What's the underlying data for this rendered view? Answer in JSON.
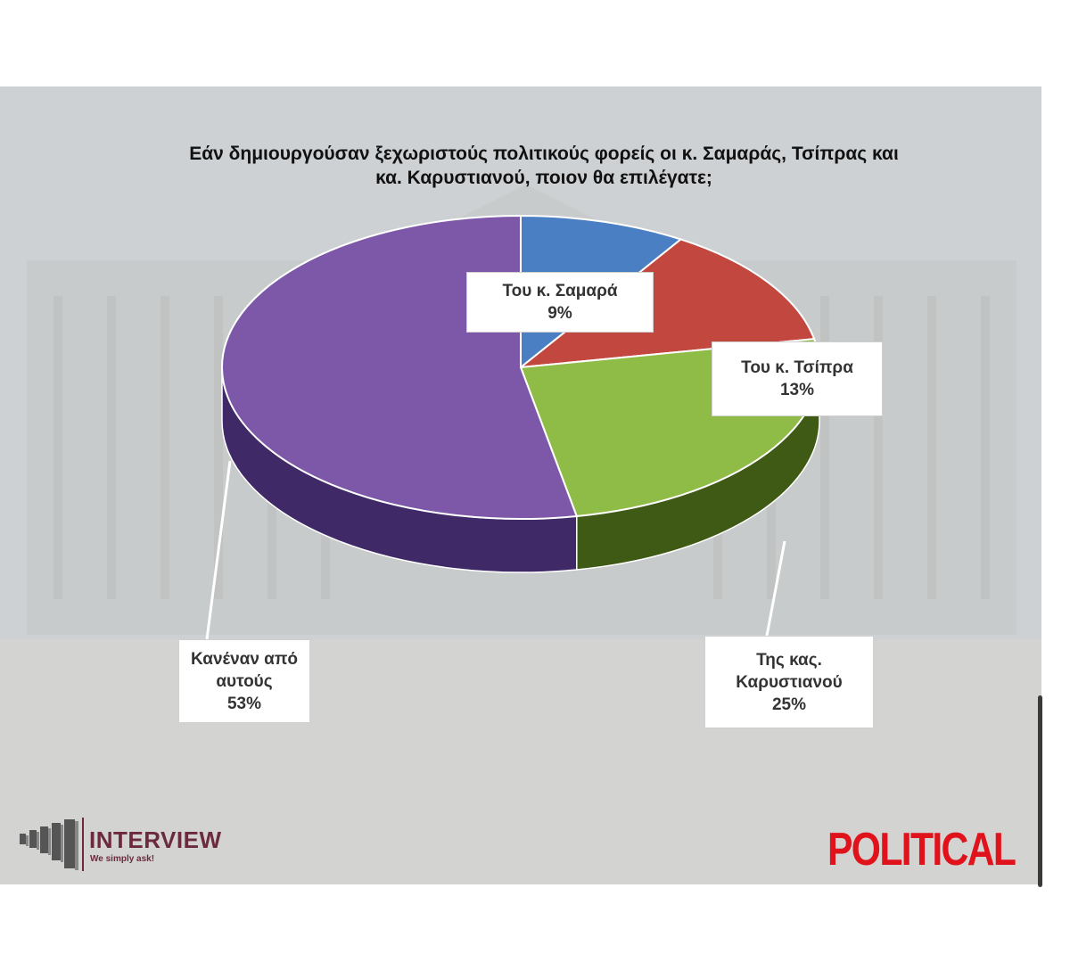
{
  "title": {
    "line1": "Εάν δημιουργούσαν ξεχωριστούς πολιτικούς φορείς οι κ. Σαμαράς, Τσίπρας και",
    "line2": "κα. Καρυστιανού, ποιον θα επιλέγατε;"
  },
  "chart_data": {
    "type": "pie",
    "title": "Εάν δημιουργούσαν ξεχωριστούς πολιτικούς φορείς οι κ. Σαμαράς, Τσίπρας και κα. Καρυστιανού, ποιον θα επιλέγατε;",
    "categories": [
      "Του κ. Σαμαρά",
      "Του κ. Τσίπρα",
      "Της κας. Καρυστιανού",
      "Κανέναν από αυτούς"
    ],
    "values": [
      9,
      13,
      25,
      53
    ],
    "unit": "%",
    "colors": [
      "#4a7fc4",
      "#c2473f",
      "#8fbb47",
      "#7d58a8"
    ],
    "side_colors": [
      "#2c4f80",
      "#7a2622",
      "#3f5a14",
      "#3f2966"
    ],
    "style": "3d-tilted",
    "labels": [
      {
        "lines": [
          "Του κ. Σαμαρά",
          "9%"
        ]
      },
      {
        "lines": [
          "Του κ. Τσίπρα",
          "13%"
        ]
      },
      {
        "lines": [
          "Της κας.",
          "Καρυστιανού",
          "25%"
        ]
      },
      {
        "lines": [
          "Κανέναν από",
          "αυτούς",
          "53%"
        ]
      }
    ]
  },
  "branding": {
    "interview_name": "INTERVIEW",
    "interview_tagline": "We simply ask!",
    "political": "POLITICAL",
    "interview_color": "#6b2a3e",
    "political_color": "#e0121b"
  }
}
